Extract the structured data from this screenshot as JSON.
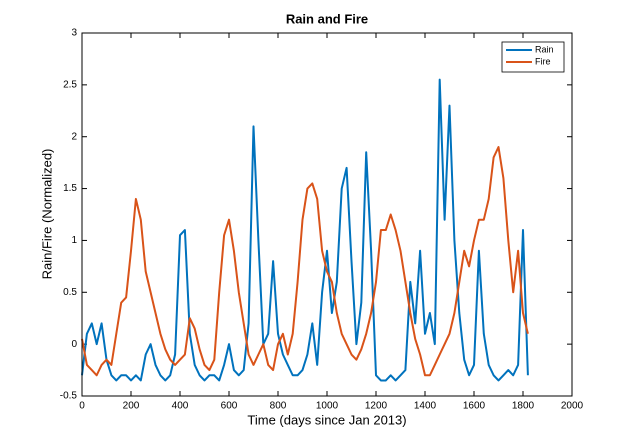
{
  "chart_data": {
    "type": "line",
    "title": "Rain and Fire",
    "x_label": "Time (days since Jan 2013)",
    "y_label": "Rain/Fire (Normalized)",
    "x": [
      0,
      20,
      40,
      60,
      80,
      100,
      120,
      140,
      160,
      180,
      200,
      220,
      240,
      260,
      280,
      300,
      320,
      340,
      360,
      380,
      400,
      420,
      440,
      460,
      480,
      500,
      520,
      540,
      560,
      580,
      600,
      620,
      640,
      660,
      680,
      700,
      720,
      740,
      760,
      780,
      800,
      820,
      840,
      860,
      880,
      900,
      920,
      940,
      960,
      980,
      1000,
      1020,
      1040,
      1060,
      1080,
      1100,
      1120,
      1140,
      1160,
      1180,
      1200,
      1220,
      1240,
      1260,
      1280,
      1300,
      1320,
      1340,
      1360,
      1380,
      1400,
      1420,
      1440,
      1460,
      1480,
      1500,
      1520,
      1540,
      1560,
      1580,
      1600,
      1620,
      1640,
      1660,
      1680,
      1700,
      1720,
      1740,
      1760,
      1780,
      1800,
      1820
    ],
    "series": [
      {
        "name": "Rain",
        "color": "#0072bd",
        "values": [
          -0.3,
          0.1,
          0.2,
          0.0,
          0.2,
          -0.15,
          -0.3,
          -0.35,
          -0.3,
          -0.3,
          -0.35,
          -0.3,
          -0.35,
          -0.1,
          0.0,
          -0.2,
          -0.3,
          -0.35,
          -0.3,
          -0.1,
          1.05,
          1.1,
          0.1,
          -0.2,
          -0.3,
          -0.35,
          -0.3,
          -0.3,
          -0.35,
          -0.2,
          0.0,
          -0.25,
          -0.3,
          -0.25,
          0.2,
          2.1,
          1.0,
          0.0,
          0.1,
          0.8,
          0.1,
          -0.1,
          -0.2,
          -0.3,
          -0.3,
          -0.25,
          -0.1,
          0.2,
          -0.2,
          0.5,
          0.9,
          0.3,
          0.6,
          1.5,
          1.7,
          0.8,
          0.0,
          0.4,
          1.85,
          0.9,
          -0.3,
          -0.35,
          -0.35,
          -0.3,
          -0.35,
          -0.3,
          -0.25,
          0.6,
          0.2,
          0.9,
          0.1,
          0.3,
          0.0,
          2.55,
          1.2,
          2.3,
          1.0,
          0.3,
          -0.15,
          -0.3,
          -0.2,
          0.9,
          0.1,
          -0.2,
          -0.3,
          -0.35,
          -0.3,
          -0.25,
          -0.3,
          -0.2,
          1.1,
          -0.3
        ]
      },
      {
        "name": "Fire",
        "color": "#d95319",
        "values": [
          0.05,
          -0.2,
          -0.25,
          -0.3,
          -0.2,
          -0.15,
          -0.2,
          0.1,
          0.4,
          0.45,
          0.9,
          1.4,
          1.2,
          0.7,
          0.5,
          0.3,
          0.1,
          -0.05,
          -0.15,
          -0.2,
          -0.15,
          -0.1,
          0.25,
          0.15,
          -0.05,
          -0.2,
          -0.25,
          -0.15,
          0.5,
          1.05,
          1.2,
          0.9,
          0.5,
          0.2,
          -0.1,
          -0.2,
          -0.1,
          0.0,
          -0.2,
          -0.25,
          0.0,
          0.1,
          -0.1,
          0.1,
          0.6,
          1.2,
          1.5,
          1.55,
          1.4,
          0.9,
          0.7,
          0.6,
          0.3,
          0.1,
          0.0,
          -0.1,
          -0.15,
          -0.05,
          0.1,
          0.3,
          0.6,
          1.1,
          1.1,
          1.25,
          1.1,
          0.9,
          0.6,
          0.3,
          0.05,
          -0.1,
          -0.3,
          -0.3,
          -0.2,
          -0.1,
          0.0,
          0.1,
          0.3,
          0.6,
          0.9,
          0.75,
          1.0,
          1.2,
          1.2,
          1.4,
          1.8,
          1.9,
          1.6,
          1.0,
          0.5,
          0.9,
          0.3,
          0.1
        ]
      }
    ],
    "xlim": [
      0,
      2000
    ],
    "xticks": [
      0,
      200,
      400,
      600,
      800,
      1000,
      1200,
      1400,
      1600,
      1800,
      2000
    ],
    "ylim": [
      -0.5,
      3
    ],
    "yticks": [
      -0.5,
      0,
      0.5,
      1,
      1.5,
      2,
      2.5,
      3
    ],
    "legend": "northeast"
  }
}
